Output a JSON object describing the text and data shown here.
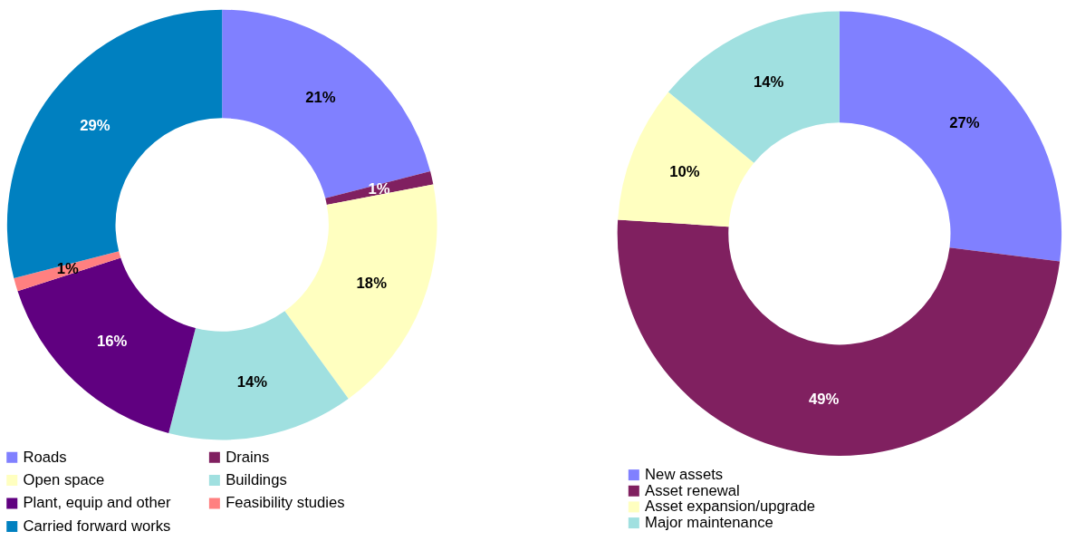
{
  "chart_data": [
    {
      "type": "donut",
      "categories": [
        "Roads",
        "Drains",
        "Open space",
        "Buildings",
        "Plant, equip and other",
        "Feasibility studies",
        "Carried forward works"
      ],
      "values": [
        21,
        1,
        18,
        14,
        16,
        1,
        29
      ],
      "colors": [
        "#8080ff",
        "#802060",
        "#ffffc0",
        "#a0e0e0",
        "#600080",
        "#ff8080",
        "#0080c0"
      ],
      "value_labels": [
        "21%",
        "1%",
        "18%",
        "14%",
        "16%",
        "1%",
        "29%"
      ],
      "legend": "bottom"
    },
    {
      "type": "donut",
      "categories": [
        "New assets",
        "Asset renewal",
        "Asset expansion/upgrade",
        "Major maintenance"
      ],
      "values": [
        27,
        49,
        10,
        14
      ],
      "colors": [
        "#8080ff",
        "#802060",
        "#ffffc0",
        "#a0e0e0"
      ],
      "value_labels": [
        "27%",
        "49%",
        "10%",
        "14%"
      ],
      "legend": "bottom"
    }
  ]
}
